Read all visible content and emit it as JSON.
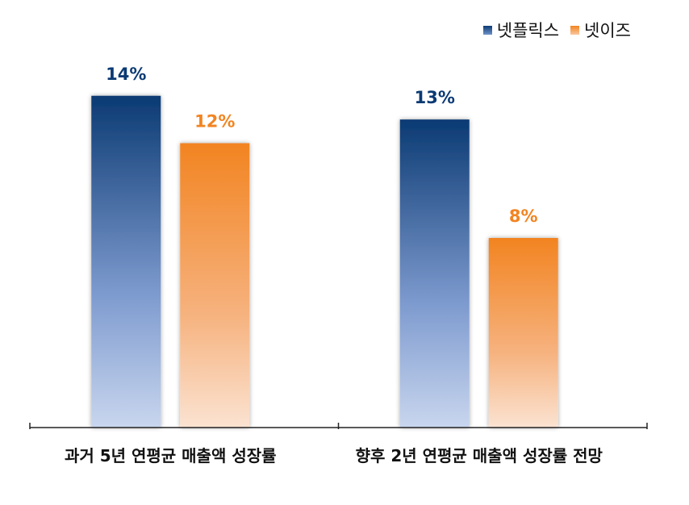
{
  "chart_data": {
    "type": "bar",
    "categories": [
      "과거 5년 연평균 매출액 성장률",
      "향후 2년 연평균 매출액 성장률 전망"
    ],
    "series": [
      {
        "name": "넷플릭스",
        "values": [
          14,
          13
        ],
        "labels": [
          "14%",
          "13%"
        ],
        "color": "#0B3A73"
      },
      {
        "name": "넷이즈",
        "values": [
          12,
          8
        ],
        "labels": [
          "12%",
          "8%"
        ],
        "color": "#F28421"
      }
    ],
    "ylim": [
      0,
      16
    ],
    "grid": false,
    "legend_position": "top-right"
  }
}
